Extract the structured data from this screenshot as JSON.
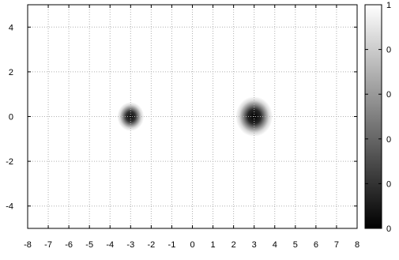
{
  "chart_data": {
    "type": "heatmap",
    "title": "",
    "xlabel": "",
    "ylabel": "",
    "xlim": [
      -8,
      8
    ],
    "ylim": [
      -5,
      5
    ],
    "x_ticks": [
      "-8",
      "-7",
      "-6",
      "-5",
      "-4",
      "-3",
      "-2",
      "-1",
      "0",
      "1",
      "2",
      "3",
      "4",
      "5",
      "6",
      "7",
      "8"
    ],
    "y_ticks": [
      "4",
      "2",
      "0",
      "-2",
      "-4"
    ],
    "grid": true,
    "colormap": "grayscale (black = low, white = high)",
    "colorbar": {
      "range": [
        0,
        1
      ],
      "tick_labels": [
        "1",
        "0",
        "0",
        "0",
        "0",
        "0"
      ]
    },
    "features": [
      {
        "x": -3,
        "y": 0,
        "min_value": 0.05,
        "radius": 0.65
      },
      {
        "x": 3,
        "y": 0,
        "min_value": 0.0,
        "radius": 0.9
      }
    ]
  }
}
